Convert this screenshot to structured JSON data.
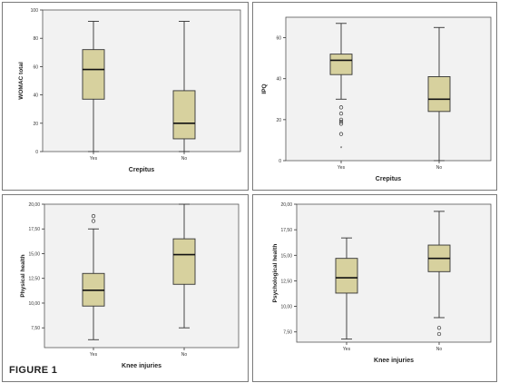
{
  "figure": {
    "label": "FIGURE 1",
    "box_fill": "#d7d19e",
    "plot_bg": "#f2f2f2",
    "box_stroke": "#333333"
  },
  "chart_data": [
    {
      "type": "box",
      "ylabel": "WOMAC total",
      "xlabel": "Crepitus",
      "ylim": [
        0,
        100
      ],
      "yticks": [
        0,
        20,
        40,
        60,
        80,
        100
      ],
      "ytick_labels": [
        "0",
        "20",
        "40",
        "60",
        "80",
        "100"
      ],
      "categories": [
        "Yes",
        "No"
      ],
      "boxes": [
        {
          "category": "Yes",
          "min": 0,
          "q1": 37,
          "median": 58,
          "q3": 72,
          "max": 92,
          "outliers": [],
          "extremes": []
        },
        {
          "category": "No",
          "min": 0,
          "q1": 9,
          "median": 20,
          "q3": 43,
          "max": 92,
          "outliers": [],
          "extremes": []
        }
      ]
    },
    {
      "type": "box",
      "ylabel": "IPQ",
      "xlabel": "Crepitus",
      "ylim": [
        0,
        70
      ],
      "yticks": [
        0,
        20,
        40,
        60
      ],
      "ytick_labels": [
        "0",
        "20",
        "40",
        "60"
      ],
      "categories": [
        "Yes",
        "No"
      ],
      "boxes": [
        {
          "category": "Yes",
          "min": 30,
          "q1": 42,
          "median": 49,
          "q3": 52,
          "max": 67,
          "outliers": [
            26,
            23,
            20,
            19,
            18,
            13
          ],
          "extremes": [
            6
          ]
        },
        {
          "category": "No",
          "min": 0,
          "q1": 24,
          "median": 30,
          "q3": 41,
          "max": 65,
          "outliers": [],
          "extremes": []
        }
      ]
    },
    {
      "type": "box",
      "ylabel": "Physical health",
      "xlabel": "Knee injuries",
      "ylim": [
        5.5,
        20.0
      ],
      "yticks": [
        7.5,
        10.0,
        12.5,
        15.0,
        17.5,
        20.0
      ],
      "ytick_labels": [
        "7,50",
        "10,00",
        "12,50",
        "15,00",
        "17,50",
        "20,00"
      ],
      "categories": [
        "Yes",
        "No"
      ],
      "boxes": [
        {
          "category": "Yes",
          "min": 6.3,
          "q1": 9.7,
          "median": 11.3,
          "q3": 13.0,
          "max": 17.5,
          "outliers": [
            18.8,
            18.3
          ],
          "extremes": []
        },
        {
          "category": "No",
          "min": 7.5,
          "q1": 11.9,
          "median": 14.9,
          "q3": 16.5,
          "max": 20.0,
          "outliers": [],
          "extremes": []
        }
      ]
    },
    {
      "type": "box",
      "ylabel": "Psychological health",
      "xlabel": "Knee injuries",
      "ylim": [
        6.5,
        20.0
      ],
      "yticks": [
        7.5,
        10.0,
        12.5,
        15.0,
        17.5,
        20.0
      ],
      "ytick_labels": [
        "7,50",
        "10,00",
        "12,50",
        "15,00",
        "17,50",
        "20,00"
      ],
      "categories": [
        "Yes",
        "No"
      ],
      "boxes": [
        {
          "category": "Yes",
          "min": 6.8,
          "q1": 11.3,
          "median": 12.8,
          "q3": 14.7,
          "max": 16.7,
          "outliers": [],
          "extremes": []
        },
        {
          "category": "No",
          "min": 8.9,
          "q1": 13.4,
          "median": 14.7,
          "q3": 16.0,
          "max": 19.3,
          "outliers": [
            7.9,
            7.3
          ],
          "extremes": []
        }
      ]
    }
  ]
}
